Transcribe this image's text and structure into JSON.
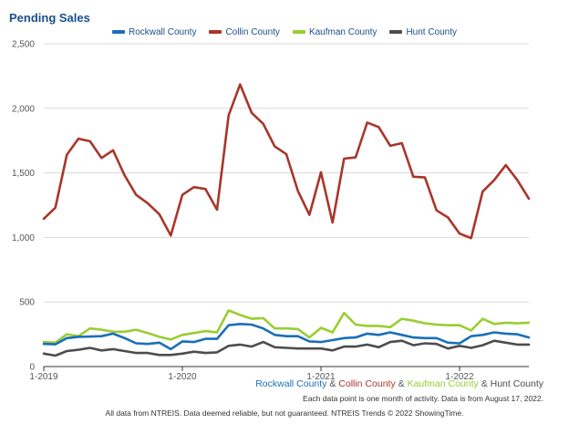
{
  "chart_data": {
    "type": "line",
    "title": "Pending Sales",
    "x": [
      "2019-01",
      "2019-02",
      "2019-03",
      "2019-04",
      "2019-05",
      "2019-06",
      "2019-07",
      "2019-08",
      "2019-09",
      "2019-10",
      "2019-11",
      "2019-12",
      "2020-01",
      "2020-02",
      "2020-03",
      "2020-04",
      "2020-05",
      "2020-06",
      "2020-07",
      "2020-08",
      "2020-09",
      "2020-10",
      "2020-11",
      "2020-12",
      "2021-01",
      "2021-02",
      "2021-03",
      "2021-04",
      "2021-05",
      "2021-06",
      "2021-07",
      "2021-08",
      "2021-09",
      "2021-10",
      "2021-11",
      "2021-12",
      "2022-01",
      "2022-02",
      "2022-03",
      "2022-04",
      "2022-05",
      "2022-06",
      "2022-07"
    ],
    "x_tick_labels": [
      {
        "at": "2019-01",
        "label": "1-2019"
      },
      {
        "at": "2020-01",
        "label": "1-2020"
      },
      {
        "at": "2021-01",
        "label": "1-2021"
      },
      {
        "at": "2022-01",
        "label": "1-2022"
      }
    ],
    "ylim": [
      0,
      2500
    ],
    "y_ticks": [
      0,
      500,
      1000,
      1500,
      2000,
      2500
    ],
    "y_tick_labels": [
      "0",
      "500",
      "1,000",
      "1,500",
      "2,000",
      "2,500"
    ],
    "grid": "horizontal",
    "legend_placement": "top-center",
    "series": [
      {
        "name": "Rockwall County",
        "color": "#1a6fb8",
        "values": [
          175,
          172,
          220,
          230,
          232,
          235,
          255,
          220,
          180,
          175,
          185,
          135,
          195,
          190,
          215,
          215,
          320,
          330,
          325,
          295,
          245,
          235,
          235,
          195,
          190,
          205,
          220,
          225,
          255,
          245,
          265,
          245,
          225,
          220,
          220,
          185,
          180,
          235,
          245,
          265,
          255,
          250,
          225
        ]
      },
      {
        "name": "Collin County",
        "color": "#a8362a",
        "values": [
          1145,
          1230,
          1640,
          1765,
          1745,
          1615,
          1675,
          1480,
          1330,
          1265,
          1180,
          1015,
          1330,
          1390,
          1375,
          1215,
          1945,
          2185,
          1965,
          1880,
          1705,
          1645,
          1360,
          1175,
          1505,
          1115,
          1610,
          1620,
          1890,
          1855,
          1710,
          1730,
          1470,
          1465,
          1210,
          1155,
          1030,
          995,
          1355,
          1445,
          1560,
          1445,
          1300
        ]
      },
      {
        "name": "Kaufman County",
        "color": "#9acd32",
        "values": [
          190,
          185,
          250,
          235,
          295,
          285,
          270,
          270,
          285,
          260,
          230,
          210,
          245,
          260,
          275,
          265,
          435,
          400,
          370,
          375,
          295,
          295,
          290,
          225,
          300,
          265,
          415,
          325,
          315,
          315,
          305,
          370,
          355,
          335,
          325,
          320,
          320,
          280,
          370,
          330,
          340,
          335,
          340
        ]
      },
      {
        "name": "Hunt County",
        "color": "#4d4d4d",
        "values": [
          100,
          85,
          120,
          130,
          145,
          125,
          135,
          120,
          105,
          105,
          90,
          90,
          100,
          115,
          105,
          110,
          160,
          170,
          155,
          190,
          150,
          145,
          140,
          140,
          140,
          125,
          155,
          155,
          170,
          150,
          190,
          200,
          165,
          180,
          175,
          140,
          160,
          145,
          165,
          200,
          185,
          170,
          170
        ]
      }
    ]
  },
  "footer": {
    "counties": [
      {
        "text": "Rockwall County",
        "color": "#1a6fb8"
      },
      {
        "text": " & ",
        "color": "#555555"
      },
      {
        "text": "Collin County",
        "color": "#a8362a"
      },
      {
        "text": " & ",
        "color": "#555555"
      },
      {
        "text": "Kaufman County",
        "color": "#9acd32"
      },
      {
        "text": " & ",
        "color": "#555555"
      },
      {
        "text": "Hunt County",
        "color": "#4d4d4d"
      }
    ],
    "note": "Each data point is one month of activity. Data is from August 17, 2022.",
    "disclaimer": "All data from NTREIS. Data deemed reliable, but not guaranteed. NTREIS Trends © 2022 ShowingTime."
  }
}
